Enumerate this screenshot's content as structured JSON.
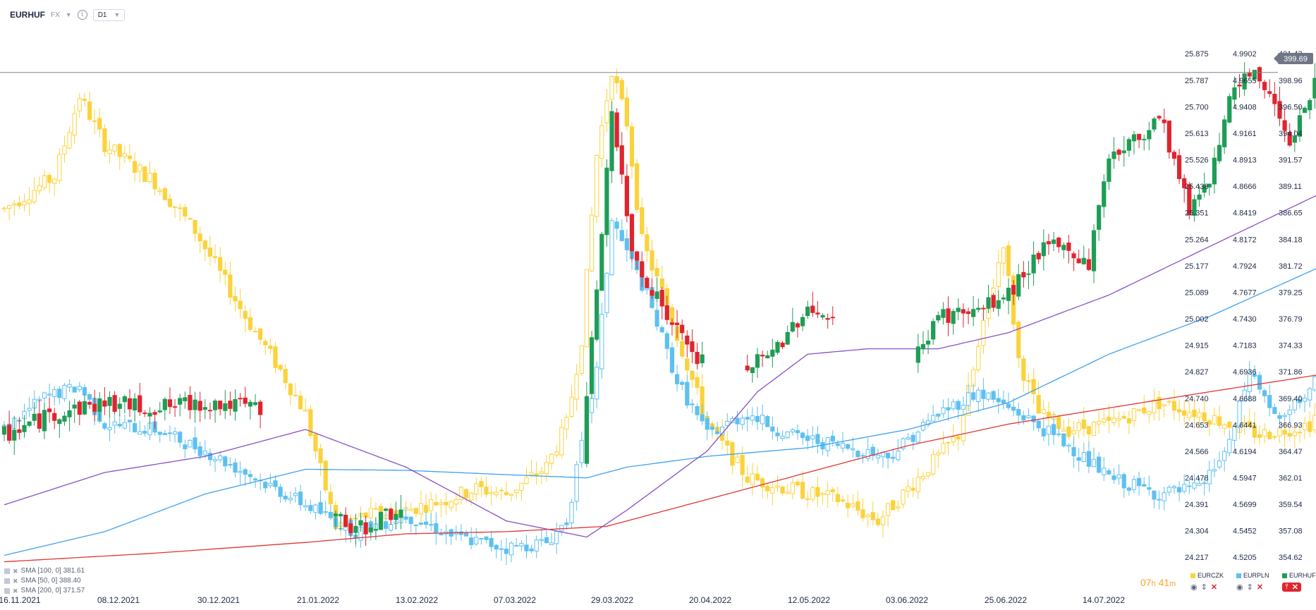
{
  "header": {
    "symbol": "EURHUF",
    "market": "FX",
    "timeframe": "D1"
  },
  "colors": {
    "eurczk": "#fbd23c",
    "eurpln": "#5ec0f0",
    "eurhuf_up": "#1f9d55",
    "eurhuf_down": "#e0242f",
    "sma100": "#3fa1f0",
    "sma50": "#8a4fc6",
    "sma200": "#e03535",
    "price_line": "#7a8190"
  },
  "indicators": [
    {
      "label": "SMA [100, 0] 381.61"
    },
    {
      "label": "SMA [50, 0] 388.40"
    },
    {
      "label": "SMA [200, 0] 371.57"
    }
  ],
  "timer": {
    "hours": "07",
    "hours_unit": "h",
    "minutes": "41",
    "minutes_unit": "m"
  },
  "legend": [
    {
      "name": "EURCZK"
    },
    {
      "name": "EURPLN"
    },
    {
      "name": "EURHUF"
    }
  ],
  "chart_data": {
    "type": "candlestick",
    "x_labels": [
      "16.11.2021",
      "08.12.2021",
      "30.12.2021",
      "21.01.2022",
      "13.02.2022",
      "07.03.2022",
      "29.03.2022",
      "20.04.2022",
      "12.05.2022",
      "03.06.2022",
      "25.06.2022",
      "14.07.2022"
    ],
    "axis_czk": [
      "25.875",
      "25.787",
      "25.700",
      "25.613",
      "25.526",
      "25.438",
      "25.351",
      "25.264",
      "25.177",
      "25.089",
      "25.002",
      "24.915",
      "24.827",
      "24.740",
      "24.653",
      "24.566",
      "24.478",
      "24.391",
      "24.304",
      "24.217"
    ],
    "axis_pln": [
      "4.9902",
      "4.9655",
      "4.9408",
      "4.9161",
      "4.8913",
      "4.8666",
      "4.8419",
      "4.8172",
      "4.7924",
      "4.7677",
      "4.7430",
      "4.7183",
      "4.6936",
      "4.6688",
      "4.6441",
      "4.6194",
      "4.5947",
      "4.5699",
      "4.5452",
      "4.5205"
    ],
    "axis_huf": [
      "401.43",
      "398.96",
      "396.50",
      "394.04",
      "391.57",
      "389.11",
      "386.65",
      "384.18",
      "381.72",
      "379.25",
      "376.79",
      "374.33",
      "371.86",
      "369.40",
      "366.93",
      "364.47",
      "362.01",
      "359.54",
      "357.08",
      "354.62"
    ],
    "current_price": "399.69",
    "huf_range": [
      352.8,
      403.8
    ],
    "series": [
      {
        "name": "EURCZK",
        "kf": [
          [
            0,
            387.0
          ],
          [
            10,
            390.0
          ],
          [
            15,
            397.5
          ],
          [
            20,
            393.0
          ],
          [
            30,
            389.5
          ],
          [
            38,
            385.0
          ],
          [
            48,
            377.0
          ],
          [
            55,
            372.0
          ],
          [
            60,
            368.0
          ],
          [
            66,
            357.5
          ],
          [
            72,
            358.5
          ],
          [
            80,
            359.0
          ],
          [
            88,
            360.0
          ],
          [
            94,
            361.0
          ],
          [
            100,
            360.5
          ],
          [
            108,
            363.0
          ],
          [
            112,
            367.0
          ],
          [
            115,
            375.0
          ],
          [
            118,
            392.0
          ],
          [
            121,
            400.0
          ],
          [
            124,
            395.0
          ],
          [
            127,
            384.0
          ],
          [
            132,
            378.0
          ],
          [
            140,
            367.0
          ],
          [
            148,
            362.0
          ],
          [
            156,
            361.0
          ],
          [
            166,
            360.0
          ],
          [
            174,
            358.0
          ],
          [
            180,
            361.0
          ],
          [
            190,
            366.0
          ],
          [
            196,
            378.0
          ],
          [
            199,
            384.0
          ],
          [
            202,
            373.0
          ],
          [
            206,
            368.0
          ],
          [
            212,
            366.5
          ],
          [
            220,
            367.0
          ],
          [
            230,
            369.0
          ],
          [
            238,
            368.0
          ],
          [
            250,
            366.0
          ],
          [
            260,
            367.0
          ],
          [
            262,
            368.5
          ]
        ],
        "amp": 0.9
      },
      {
        "name": "EURPLN",
        "kf": [
          [
            0,
            366.5
          ],
          [
            8,
            369.5
          ],
          [
            15,
            370.5
          ],
          [
            20,
            367.0
          ],
          [
            30,
            366.5
          ],
          [
            40,
            364.5
          ],
          [
            50,
            362.0
          ],
          [
            60,
            359.5
          ],
          [
            70,
            357.0
          ],
          [
            80,
            358.5
          ],
          [
            90,
            356.5
          ],
          [
            100,
            355.5
          ],
          [
            108,
            356.0
          ],
          [
            112,
            358.0
          ],
          [
            118,
            372.0
          ],
          [
            121,
            386.0
          ],
          [
            124,
            383.0
          ],
          [
            128,
            379.0
          ],
          [
            134,
            371.0
          ],
          [
            140,
            366.0
          ],
          [
            148,
            368.0
          ],
          [
            156,
            366.0
          ],
          [
            166,
            365.0
          ],
          [
            176,
            364.0
          ],
          [
            186,
            368.0
          ],
          [
            194,
            370.0
          ],
          [
            202,
            368.0
          ],
          [
            212,
            365.0
          ],
          [
            220,
            362.0
          ],
          [
            230,
            360.5
          ],
          [
            238,
            361.0
          ],
          [
            244,
            365.0
          ],
          [
            248,
            372.0
          ],
          [
            254,
            367.0
          ],
          [
            262,
            371.5
          ]
        ],
        "amp": 0.8
      },
      {
        "name": "EURHUF",
        "kf": [
          [
            0,
            366.0
          ],
          [
            10,
            368.0
          ],
          [
            20,
            369.0
          ],
          [
            30,
            368.5
          ],
          [
            40,
            369.0
          ],
          [
            50,
            368.5
          ],
          [
            58,
            363.5
          ],
          [
            64,
            359.0
          ],
          [
            70,
            357.0
          ],
          [
            80,
            359.5
          ],
          [
            90,
            356.0
          ],
          [
            100,
            356.0
          ],
          [
            110,
            357.5
          ],
          [
            114,
            358.0
          ],
          [
            121,
            396.0
          ],
          [
            125,
            383.0
          ],
          [
            132,
            377.0
          ],
          [
            138,
            373.0
          ],
          [
            146,
            372.0
          ],
          [
            152,
            373.0
          ],
          [
            160,
            378.0
          ],
          [
            166,
            376.0
          ],
          [
            172,
            373.0
          ],
          [
            178,
            370.5
          ],
          [
            186,
            377.0
          ],
          [
            194,
            377.5
          ],
          [
            200,
            379.0
          ],
          [
            206,
            383.0
          ],
          [
            210,
            383.5
          ],
          [
            216,
            382.0
          ],
          [
            220,
            392.0
          ],
          [
            226,
            393.5
          ],
          [
            230,
            396.0
          ],
          [
            236,
            387.0
          ],
          [
            240,
            390.0
          ],
          [
            244,
            397.0
          ],
          [
            248,
            399.5
          ],
          [
            252,
            398.0
          ],
          [
            256,
            393.5
          ],
          [
            262,
            399.7
          ]
        ],
        "amp": 1.0,
        "start_index": 0,
        "skip_ranges": [
          [
            52,
            66
          ],
          [
            80,
            116
          ],
          [
            140,
            148
          ],
          [
            166,
            176
          ],
          [
            176,
            182
          ]
        ]
      },
      {
        "name": "SMA 100",
        "type": "line",
        "kf": [
          [
            0,
            354.8
          ],
          [
            20,
            357.0
          ],
          [
            40,
            360.5
          ],
          [
            60,
            362.8
          ],
          [
            80,
            362.7
          ],
          [
            100,
            362.3
          ],
          [
            116,
            362.0
          ],
          [
            124,
            363.0
          ],
          [
            140,
            364.0
          ],
          [
            160,
            364.8
          ],
          [
            180,
            366.5
          ],
          [
            200,
            369.0
          ],
          [
            220,
            373.5
          ],
          [
            240,
            377.0
          ],
          [
            262,
            381.6
          ]
        ]
      },
      {
        "name": "SMA 50",
        "type": "line",
        "kf": [
          [
            0,
            359.5
          ],
          [
            20,
            362.5
          ],
          [
            40,
            364.0
          ],
          [
            60,
            366.5
          ],
          [
            80,
            363.0
          ],
          [
            100,
            358.0
          ],
          [
            116,
            356.5
          ],
          [
            124,
            359.0
          ],
          [
            140,
            364.5
          ],
          [
            150,
            370.0
          ],
          [
            160,
            373.5
          ],
          [
            172,
            374.0
          ],
          [
            186,
            374.0
          ],
          [
            200,
            375.5
          ],
          [
            220,
            379.0
          ],
          [
            240,
            383.5
          ],
          [
            262,
            388.4
          ]
        ]
      },
      {
        "name": "SMA 200",
        "type": "line",
        "kf": [
          [
            0,
            354.2
          ],
          [
            30,
            355.0
          ],
          [
            60,
            356.0
          ],
          [
            80,
            356.8
          ],
          [
            100,
            357.0
          ],
          [
            120,
            357.5
          ],
          [
            140,
            360.0
          ],
          [
            160,
            362.5
          ],
          [
            180,
            365.0
          ],
          [
            200,
            367.0
          ],
          [
            220,
            368.5
          ],
          [
            240,
            370.0
          ],
          [
            262,
            371.6
          ]
        ]
      }
    ]
  }
}
